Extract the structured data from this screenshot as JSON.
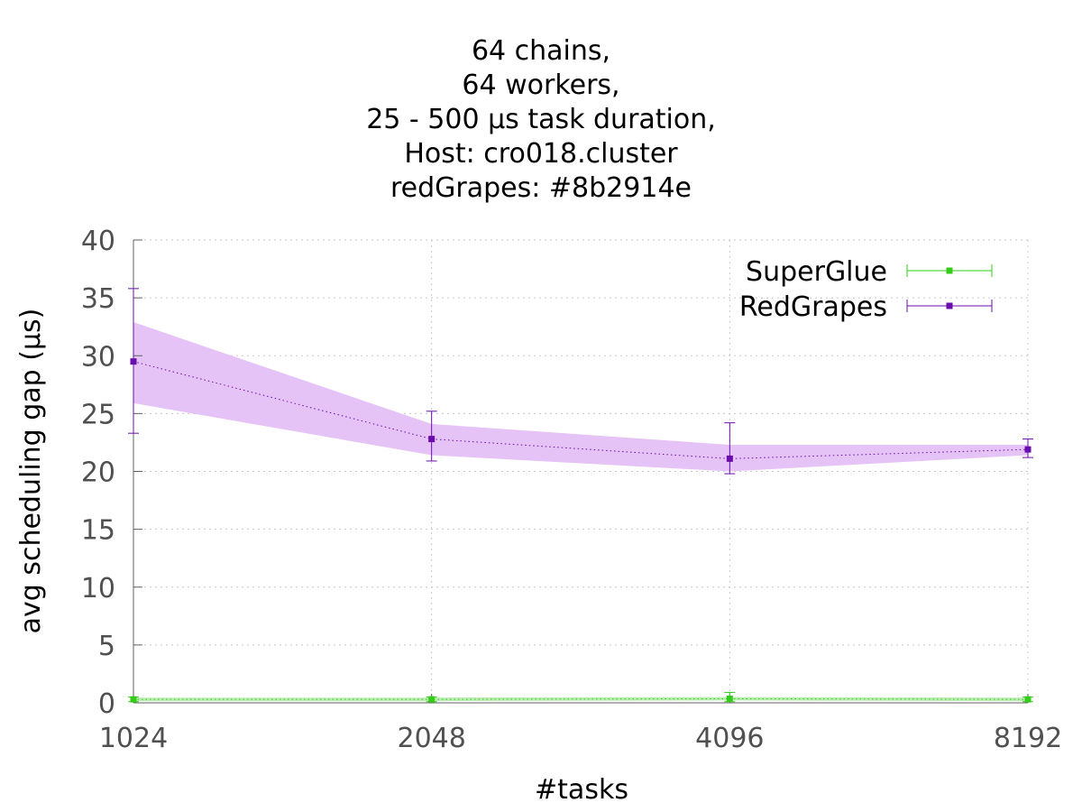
{
  "chart_data": {
    "type": "line",
    "title_lines": [
      "64 chains,",
      "64 workers,",
      "25 - 500 µs task duration,",
      "Host: cro018.cluster",
      "redGrapes: #8b2914e"
    ],
    "xlabel": "#tasks",
    "ylabel": "avg scheduling gap (µs)",
    "x_scale": "log2",
    "categories": [
      "1024",
      "2048",
      "4096",
      "8192"
    ],
    "x": [
      1024,
      2048,
      4096,
      8192
    ],
    "xlim": [
      1024,
      8192
    ],
    "ylim": [
      0,
      40
    ],
    "y_ticks": [
      "0",
      "5",
      "10",
      "15",
      "20",
      "25",
      "30",
      "35",
      "40"
    ],
    "grid": true,
    "legend_position": "top-right",
    "series": [
      {
        "name": "SuperGlue",
        "color": "#33cc1a",
        "values": [
          0.3,
          0.3,
          0.35,
          0.3
        ],
        "err_low": [
          0.1,
          0.1,
          0.1,
          0.1
        ],
        "err_high": [
          0.5,
          0.5,
          0.9,
          0.5
        ],
        "band_low": [
          0.15,
          0.15,
          0.2,
          0.15
        ],
        "band_high": [
          0.45,
          0.45,
          0.5,
          0.45
        ]
      },
      {
        "name": "RedGrapes",
        "color": "#6a0dad",
        "band_color": "#e6c3f7",
        "values": [
          29.5,
          22.8,
          21.1,
          21.9
        ],
        "err_low": [
          23.3,
          20.9,
          19.8,
          21.2
        ],
        "err_high": [
          35.8,
          25.2,
          24.2,
          22.8
        ],
        "band_low": [
          25.9,
          21.4,
          20.0,
          21.4
        ],
        "band_high": [
          32.9,
          24.1,
          22.3,
          22.3
        ]
      }
    ]
  }
}
